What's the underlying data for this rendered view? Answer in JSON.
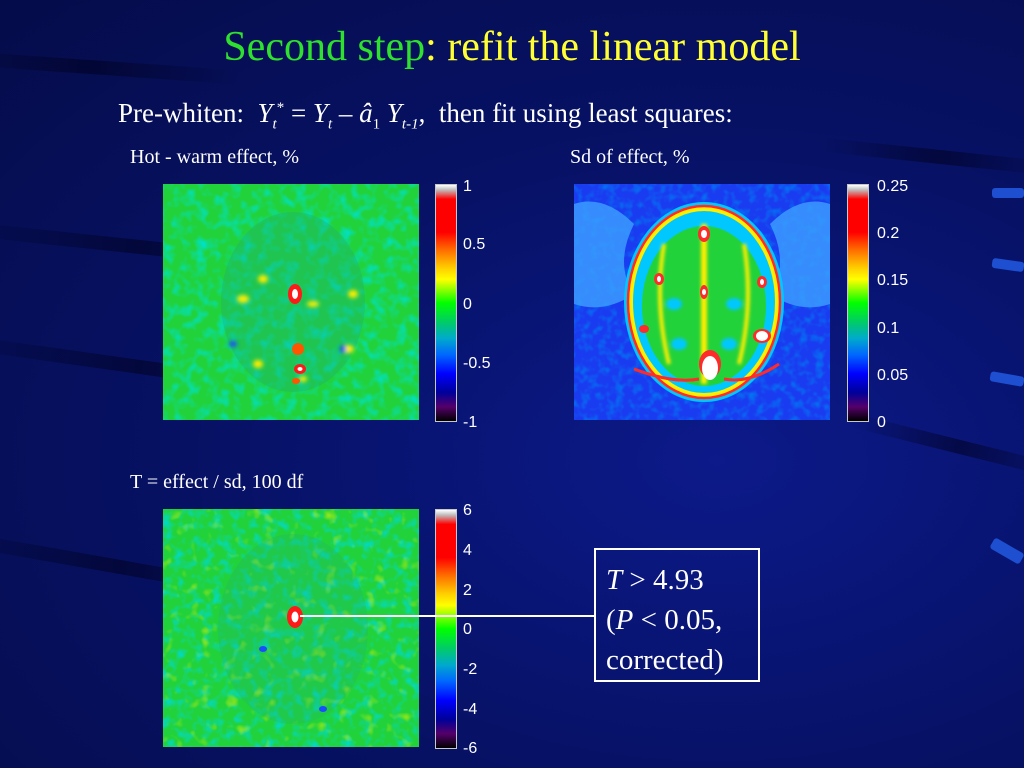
{
  "title": {
    "part1": "Second step",
    "part2": ": refit the linear model"
  },
  "subtitle": {
    "prefix": "Pre-whiten:  ",
    "eq_Y": "Y",
    "eq_t": "t",
    "eq_star": "*",
    "eq_eq": " = ",
    "eq_Y2": "Y",
    "eq_t2": "t",
    "eq_minus": " – ",
    "eq_a": "â",
    "eq_one": "1",
    "eq_Y3": " Y",
    "eq_tm1": "t-1",
    "suffix": ",  then fit using least squares:"
  },
  "panels": {
    "effect": {
      "caption": "Hot - warm effect, %",
      "ticks": [
        "1",
        "0.5",
        "0",
        "-0.5",
        "-1"
      ]
    },
    "sd": {
      "caption": "Sd of effect, %",
      "ticks": [
        "0.25",
        "0.2",
        "0.15",
        "0.1",
        "0.05",
        "0"
      ]
    },
    "tstat": {
      "caption": "T = effect / sd, 100 df",
      "ticks": [
        "6",
        "4",
        "2",
        "0",
        "-2",
        "-4",
        "-6"
      ]
    }
  },
  "callout": {
    "T": "T",
    "gt": " > 4.93",
    "open": "(",
    "P": "P",
    "lt": " < 0.05,",
    "corrected": "corrected)"
  },
  "colors": {
    "title_green": "#2fe02f",
    "title_yellow": "#ffff33",
    "background": "#071268"
  }
}
